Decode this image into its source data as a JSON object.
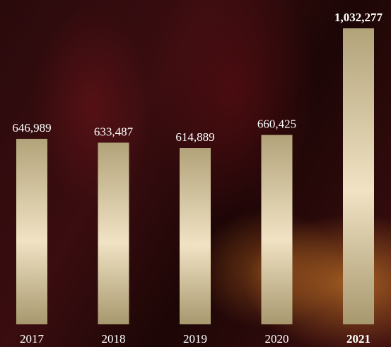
{
  "chart_data": {
    "type": "bar",
    "categories": [
      "2017",
      "2018",
      "2019",
      "2020",
      "2021"
    ],
    "values": [
      646989,
      633487,
      614889,
      660425,
      1032277
    ],
    "value_labels": [
      "646,989",
      "633,487",
      "614,889",
      "660,425",
      "1,032,277"
    ]
  }
}
